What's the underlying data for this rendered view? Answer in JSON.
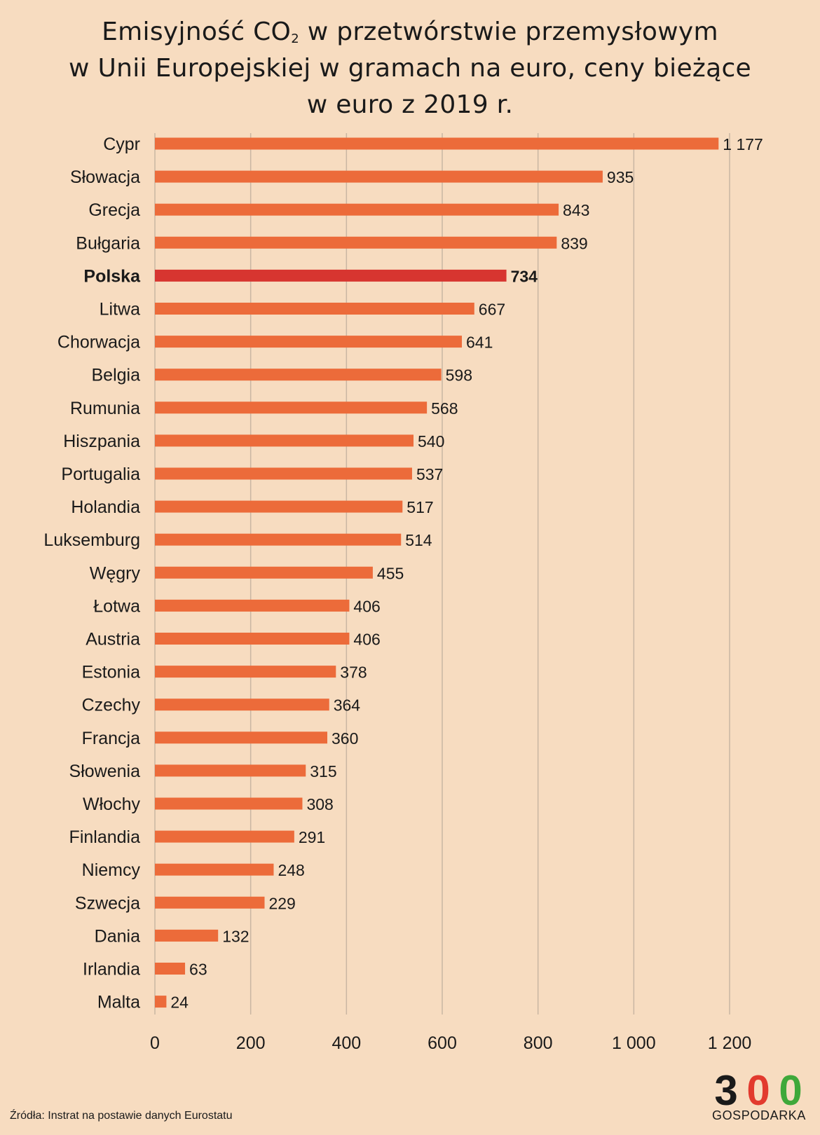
{
  "title": {
    "line1_before": "Emisyjność CO",
    "line1_sub": "2",
    "line1_after": " w przetwórstwie przemysłowym",
    "line2": "w Unii Europejskiej w gramach na euro, ceny bieżące",
    "line3": "w euro z 2019 r."
  },
  "source": "Źródła: Instrat na postawie danych Eurostatu",
  "logo": {
    "digit1": "3",
    "digit2": "0",
    "digit3": "0",
    "caption": "GOSPODARKA",
    "colors": {
      "digit1": "#1a1a1a",
      "digit2": "#e23a2e",
      "digit3": "#3fa83a"
    }
  },
  "colors": {
    "bar": "#ec6b3a",
    "highlight": "#d73530",
    "grid": "#c9b6a2",
    "text": "#1a1a1a"
  },
  "chart_data": {
    "type": "bar",
    "orientation": "horizontal",
    "title": "Emisyjność CO2 w przetwórstwie przemysłowym w Unii Europejskiej w gramach na euro, ceny bieżące w euro z 2019 r.",
    "highlight": "Polska",
    "categories": [
      "Cypr",
      "Słowacja",
      "Grecja",
      "Bułgaria",
      "Polska",
      "Litwa",
      "Chorwacja",
      "Belgia",
      "Rumunia",
      "Hiszpania",
      "Portugalia",
      "Holandia",
      "Luksemburg",
      "Węgry",
      "Łotwa",
      "Austria",
      "Estonia",
      "Czechy",
      "Francja",
      "Słowenia",
      "Włochy",
      "Finlandia",
      "Niemcy",
      "Szwecja",
      "Dania",
      "Irlandia",
      "Malta"
    ],
    "values": [
      1177,
      935,
      843,
      839,
      734,
      667,
      641,
      598,
      568,
      540,
      537,
      517,
      514,
      455,
      406,
      406,
      378,
      364,
      360,
      315,
      308,
      291,
      248,
      229,
      132,
      63,
      24
    ],
    "value_labels": [
      "1 177",
      "935",
      "843",
      "839",
      "734",
      "667",
      "641",
      "598",
      "568",
      "540",
      "537",
      "517",
      "514",
      "455",
      "406",
      "406",
      "378",
      "364",
      "360",
      "315",
      "308",
      "291",
      "248",
      "229",
      "132",
      "63",
      "24"
    ],
    "xlim": [
      0,
      1200
    ],
    "xticks": [
      0,
      200,
      400,
      600,
      800,
      1000,
      1200
    ],
    "xtick_labels": [
      "0",
      "200",
      "400",
      "600",
      "800",
      "1 000",
      "1 200"
    ],
    "grid": true,
    "xlabel": "",
    "ylabel": ""
  }
}
